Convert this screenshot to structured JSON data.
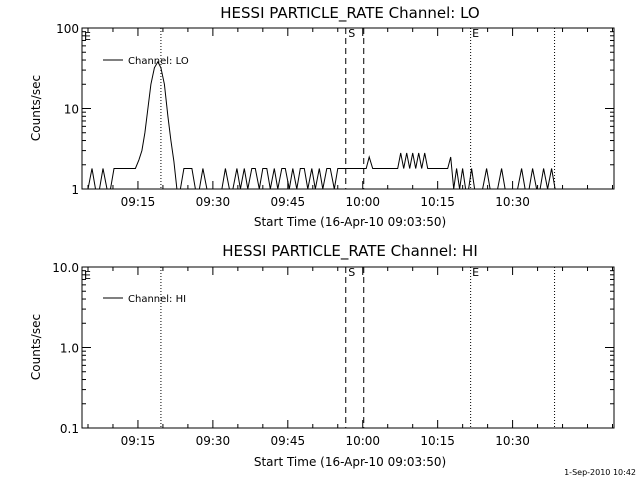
{
  "chart_data": [
    {
      "type": "line",
      "title": "HESSI PARTICLE_RATE Channel: LO",
      "ylabel": "Counts/sec",
      "xlabel": "Start Time (16-Apr-10 09:03:50)",
      "y_scale": "log",
      "ylim": [
        1,
        100
      ],
      "y_ticks": [
        {
          "v": 1,
          "label": "1"
        },
        {
          "v": 10,
          "label": "10"
        },
        {
          "v": 100,
          "label": "100"
        }
      ],
      "xlim_minutes": [
        543.8,
        650.3
      ],
      "x_ticks": [
        {
          "v": 555,
          "label": "09:15"
        },
        {
          "v": 570,
          "label": "09:30"
        },
        {
          "v": 585,
          "label": "09:45"
        },
        {
          "v": 600,
          "label": "10:00"
        },
        {
          "v": 615,
          "label": "10:15"
        },
        {
          "v": 630,
          "label": "10:30"
        }
      ],
      "legend": {
        "position": "top-left",
        "label": "Channel: LO"
      },
      "markers": {
        "S": "S",
        "E": "E"
      },
      "series": [
        {
          "values": [
            [
              544,
              1
            ],
            [
              545,
              1
            ],
            [
              545.8,
              1.8
            ],
            [
              546.5,
              1
            ],
            [
              547.3,
              1
            ],
            [
              548,
              1.8
            ],
            [
              548.8,
              1
            ],
            [
              549.5,
              1
            ],
            [
              550.2,
              1.8
            ],
            [
              550.8,
              1.8
            ],
            [
              551.5,
              1.8
            ],
            [
              552,
              1.8
            ],
            [
              553,
              1.8
            ],
            [
              554.5,
              1.8
            ],
            [
              555.2,
              2.3
            ],
            [
              555.8,
              3
            ],
            [
              556.4,
              5
            ],
            [
              557,
              10
            ],
            [
              557.6,
              20
            ],
            [
              558.3,
              32
            ],
            [
              559,
              38
            ],
            [
              559.6,
              32
            ],
            [
              560.3,
              20
            ],
            [
              561,
              8
            ],
            [
              561.6,
              4
            ],
            [
              562.2,
              2.2
            ],
            [
              562.8,
              1
            ],
            [
              563.5,
              1
            ],
            [
              564.2,
              1.8
            ],
            [
              565,
              1.8
            ],
            [
              565.8,
              1.8
            ],
            [
              566.5,
              1
            ],
            [
              567.3,
              1
            ],
            [
              568,
              1.8
            ],
            [
              568.8,
              1
            ],
            [
              569.5,
              1
            ],
            [
              570.2,
              1
            ],
            [
              571,
              1
            ],
            [
              571.8,
              1
            ],
            [
              572.5,
              1.8
            ],
            [
              573.3,
              1
            ],
            [
              574,
              1
            ],
            [
              574.8,
              1.8
            ],
            [
              575.5,
              1
            ],
            [
              576.3,
              1.8
            ],
            [
              577,
              1
            ],
            [
              577.8,
              1.8
            ],
            [
              578.5,
              1.8
            ],
            [
              579.3,
              1
            ],
            [
              580,
              1.8
            ],
            [
              580.8,
              1.8
            ],
            [
              581.5,
              1
            ],
            [
              582.3,
              1.8
            ],
            [
              583,
              1
            ],
            [
              583.8,
              1.8
            ],
            [
              584.5,
              1.8
            ],
            [
              585.3,
              1
            ],
            [
              586,
              1.8
            ],
            [
              586.8,
              1
            ],
            [
              587.5,
              1.8
            ],
            [
              588.3,
              1.8
            ],
            [
              589,
              1
            ],
            [
              589.8,
              1.8
            ],
            [
              590.5,
              1
            ],
            [
              591.3,
              1.8
            ],
            [
              592,
              1
            ],
            [
              592.8,
              1.8
            ],
            [
              593.5,
              1.8
            ],
            [
              594.3,
              1
            ],
            [
              595,
              1.8
            ],
            [
              595.8,
              1.8
            ],
            [
              596.5,
              1.8
            ],
            [
              597.3,
              1.8
            ],
            [
              598,
              1.8
            ],
            [
              599,
              1.8
            ],
            [
              600,
              1.8
            ],
            [
              600.7,
              1.8
            ],
            [
              601.3,
              2.5
            ],
            [
              602,
              1.8
            ],
            [
              603,
              1.8
            ],
            [
              604,
              1.8
            ],
            [
              605,
              1.8
            ],
            [
              606,
              1.8
            ],
            [
              607,
              1.8
            ],
            [
              607.6,
              2.8
            ],
            [
              608.2,
              1.8
            ],
            [
              608.8,
              2.8
            ],
            [
              609.4,
              1.8
            ],
            [
              610,
              2.8
            ],
            [
              610.6,
              1.8
            ],
            [
              611.2,
              2.8
            ],
            [
              611.8,
              1.8
            ],
            [
              612.4,
              2.8
            ],
            [
              613,
              1.8
            ],
            [
              614,
              1.8
            ],
            [
              615,
              1.8
            ],
            [
              616,
              1.8
            ],
            [
              617,
              1.8
            ],
            [
              617.6,
              2.5
            ],
            [
              618.2,
              1
            ],
            [
              618.8,
              1.8
            ],
            [
              619.4,
              1
            ],
            [
              620,
              1.8
            ],
            [
              620.6,
              1
            ],
            [
              621.2,
              1
            ],
            [
              621.8,
              1.8
            ],
            [
              622.4,
              1
            ],
            [
              623,
              1
            ],
            [
              624,
              1
            ],
            [
              624.8,
              1.8
            ],
            [
              625.5,
              1
            ],
            [
              626.3,
              1
            ],
            [
              627,
              1
            ],
            [
              627.8,
              1.8
            ],
            [
              628.5,
              1
            ],
            [
              629.3,
              1
            ],
            [
              630,
              1
            ],
            [
              631,
              1
            ],
            [
              631.8,
              1.8
            ],
            [
              632.5,
              1
            ],
            [
              633.3,
              1
            ],
            [
              634,
              1.8
            ],
            [
              634.8,
              1
            ],
            [
              635.5,
              1
            ],
            [
              636.2,
              1.8
            ],
            [
              637,
              1
            ],
            [
              637.8,
              1.8
            ],
            [
              638.5,
              1
            ],
            [
              639.5,
              1
            ]
          ]
        }
      ]
    },
    {
      "type": "line",
      "title": "HESSI PARTICLE_RATE Channel: HI",
      "ylabel": "Counts/sec",
      "xlabel": "Start Time (16-Apr-10 09:03:50)",
      "y_scale": "log",
      "ylim": [
        0.1,
        10
      ],
      "y_ticks": [
        {
          "v": 0.1,
          "label": "0.1"
        },
        {
          "v": 1,
          "label": "1.0"
        },
        {
          "v": 10,
          "label": "10.0"
        }
      ],
      "xlim_minutes": [
        543.8,
        650.3
      ],
      "x_ticks": [
        {
          "v": 555,
          "label": "09:15"
        },
        {
          "v": 570,
          "label": "09:30"
        },
        {
          "v": 585,
          "label": "09:45"
        },
        {
          "v": 600,
          "label": "10:00"
        },
        {
          "v": 615,
          "label": "10:15"
        },
        {
          "v": 630,
          "label": "10:30"
        }
      ],
      "legend": {
        "position": "top-left",
        "label": "Channel: HI"
      },
      "markers": {
        "S": "S",
        "E": "E"
      },
      "series": [
        {
          "values": []
        }
      ]
    }
  ],
  "vlines": {
    "dotted": [
      559.6,
      621.6,
      638.4
    ],
    "dashed": [
      596.6,
      600.2
    ]
  },
  "markers_pos": {
    "E1": 544.2,
    "S": 597.1,
    "E2": 621.9
  },
  "footer": {
    "stamp": "1-Sep-2010 10:42"
  }
}
